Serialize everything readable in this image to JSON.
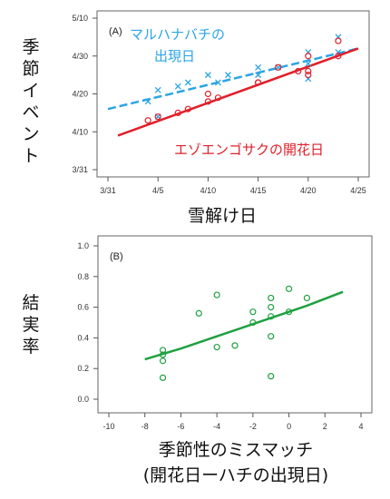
{
  "chart_data": [
    {
      "type": "scatter",
      "panel_label": "(A)",
      "xlabel": "雪解け日",
      "ylabel": "季節イベント",
      "x_ticks": [
        "3/31",
        "4/5",
        "4/10",
        "4/15",
        "4/20",
        "4/25"
      ],
      "y_ticks": [
        "3/31",
        "4/10",
        "4/20",
        "4/30",
        "5/10"
      ],
      "xlim": [
        "3/31",
        "4/25"
      ],
      "ylim": [
        "3/31",
        "5/10"
      ],
      "grid": false,
      "series": [
        {
          "name": "マルハナバチの出現日",
          "name_lines": [
            "マルハナバチの",
            "出現日"
          ],
          "color": "#2aa4e6",
          "marker": "x",
          "fit_style": "dashed",
          "points": [
            {
              "x": "4/4",
              "y": "4/18"
            },
            {
              "x": "4/5",
              "y": "4/21"
            },
            {
              "x": "4/5",
              "y": "4/14"
            },
            {
              "x": "4/7",
              "y": "4/22"
            },
            {
              "x": "4/8",
              "y": "4/23"
            },
            {
              "x": "4/10",
              "y": "4/25"
            },
            {
              "x": "4/11",
              "y": "4/23"
            },
            {
              "x": "4/12",
              "y": "4/25"
            },
            {
              "x": "4/15",
              "y": "4/27"
            },
            {
              "x": "4/15",
              "y": "4/25"
            },
            {
              "x": "4/17",
              "y": "4/27"
            },
            {
              "x": "4/20",
              "y": "5/1"
            },
            {
              "x": "4/20",
              "y": "4/24"
            },
            {
              "x": "4/20",
              "y": "4/28"
            },
            {
              "x": "4/23",
              "y": "5/5"
            },
            {
              "x": "4/23",
              "y": "5/1"
            }
          ],
          "fit": [
            {
              "x": "3/31",
              "y": "4/16"
            },
            {
              "x": "4/25",
              "y": "5/2"
            }
          ]
        },
        {
          "name": "エゾエンゴサクの開花日",
          "name_lines": [
            "エゾエンゴサクの開花日"
          ],
          "color": "#e0202a",
          "marker": "o",
          "fit_style": "solid",
          "points": [
            {
              "x": "4/4",
              "y": "4/13"
            },
            {
              "x": "4/5",
              "y": "4/14"
            },
            {
              "x": "4/7",
              "y": "4/15"
            },
            {
              "x": "4/8",
              "y": "4/16"
            },
            {
              "x": "4/10",
              "y": "4/18"
            },
            {
              "x": "4/10",
              "y": "4/20"
            },
            {
              "x": "4/11",
              "y": "4/19"
            },
            {
              "x": "4/15",
              "y": "4/23"
            },
            {
              "x": "4/15",
              "y": "4/23"
            },
            {
              "x": "4/17",
              "y": "4/27"
            },
            {
              "x": "4/19",
              "y": "4/26"
            },
            {
              "x": "4/20",
              "y": "4/25"
            },
            {
              "x": "4/20",
              "y": "4/26"
            },
            {
              "x": "4/20",
              "y": "4/30"
            },
            {
              "x": "4/23",
              "y": "4/30"
            },
            {
              "x": "4/23",
              "y": "5/4"
            }
          ],
          "fit": [
            {
              "x": "4/1",
              "y": "4/9"
            },
            {
              "x": "4/25",
              "y": "5/2"
            }
          ]
        }
      ]
    },
    {
      "type": "scatter",
      "panel_label": "(B)",
      "xlabel_lines": [
        "季節性のミスマッチ",
        "(開花日ーハチの出現日)"
      ],
      "ylabel": "結実率",
      "xlim": [
        -10,
        4
      ],
      "ylim": [
        0,
        1.0
      ],
      "x_ticks": [
        -10,
        -8,
        -6,
        -4,
        -2,
        0,
        2,
        4
      ],
      "y_ticks": [
        "0.0",
        "0.2",
        "0.4",
        "0.6",
        "0.8",
        "1.0"
      ],
      "grid": false,
      "color": "#1fa040",
      "marker": "o",
      "points": [
        [
          -7,
          0.14
        ],
        [
          -7,
          0.25
        ],
        [
          -7,
          0.29
        ],
        [
          -7,
          0.32
        ],
        [
          -5,
          0.56
        ],
        [
          -4,
          0.68
        ],
        [
          -4,
          0.34
        ],
        [
          -3,
          0.35
        ],
        [
          -2,
          0.57
        ],
        [
          -2,
          0.5
        ],
        [
          -1,
          0.15
        ],
        [
          -1,
          0.41
        ],
        [
          -1,
          0.54
        ],
        [
          -1,
          0.6
        ],
        [
          -1,
          0.66
        ],
        [
          0,
          0.72
        ],
        [
          0,
          0.57
        ],
        [
          1,
          0.66
        ]
      ],
      "fit": [
        [
          -8,
          0.26
        ],
        [
          -6,
          0.33
        ],
        [
          -4,
          0.41
        ],
        [
          -2,
          0.49
        ],
        [
          0,
          0.57
        ],
        [
          1,
          0.61
        ],
        [
          3,
          0.7
        ]
      ]
    }
  ]
}
